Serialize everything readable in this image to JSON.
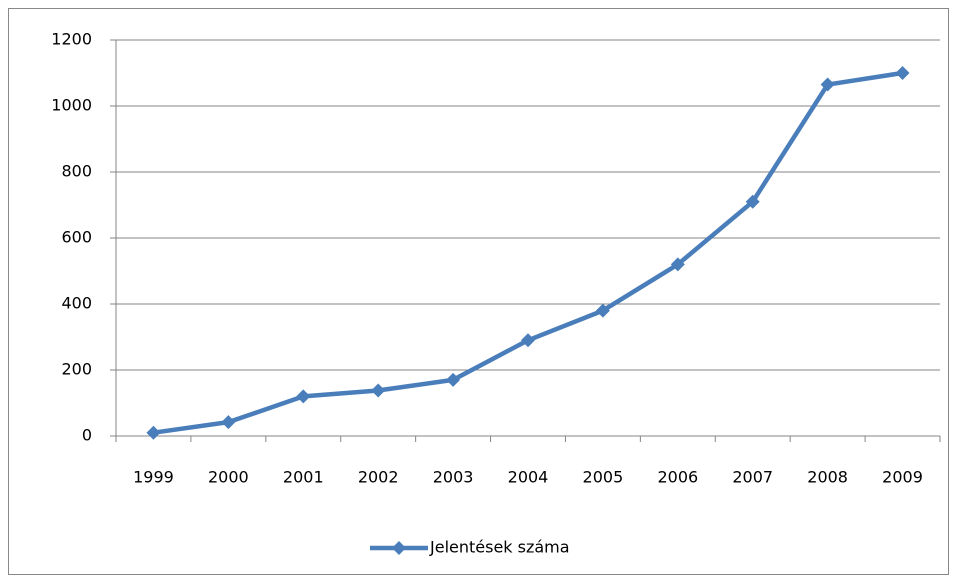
{
  "chart_data": {
    "type": "line",
    "categories": [
      "1999",
      "2000",
      "2001",
      "2002",
      "2003",
      "2004",
      "2005",
      "2006",
      "2007",
      "2008",
      "2009"
    ],
    "series": [
      {
        "name": "Jelentések száma",
        "color": "#4a7ebb",
        "values": [
          10,
          42,
          120,
          138,
          170,
          290,
          380,
          520,
          710,
          1065,
          1100
        ]
      }
    ],
    "ylim": [
      0,
      1200
    ],
    "yticks": [
      0,
      200,
      400,
      600,
      800,
      1000,
      1200
    ],
    "grid": true,
    "legend": "bottom"
  }
}
